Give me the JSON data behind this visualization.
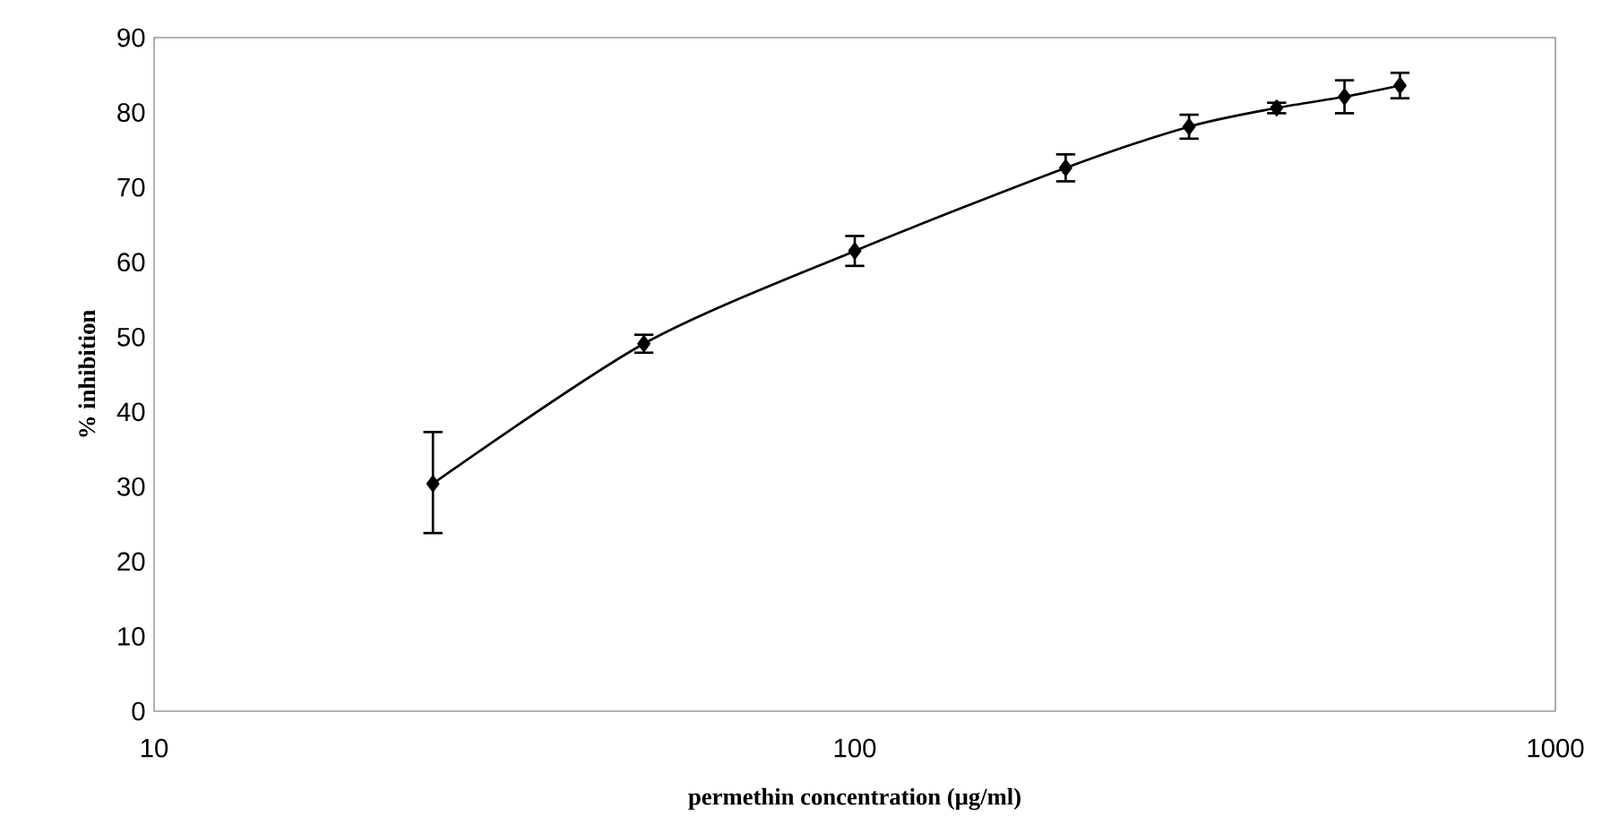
{
  "chart_data": {
    "type": "line",
    "xlabel": "permethin concentration (μg/ml)",
    "ylabel": "% inhibition",
    "x": [
      25,
      50,
      100,
      200,
      300,
      400,
      500,
      600
    ],
    "values": [
      30.4,
      49.1,
      61.5,
      72.6,
      78.1,
      80.6,
      82.1,
      83.6
    ],
    "errors": [
      [
        23.8,
        37.3
      ],
      1.2,
      2,
      1.8,
      1.6,
      0.7,
      2.2,
      1.7
    ],
    "color": "#000000",
    "marker": "diamond",
    "line_style": "solid",
    "log": "x",
    "xlim": [
      10,
      1000
    ],
    "xticks": [
      10,
      100,
      1000
    ],
    "ylim": [
      0,
      90
    ],
    "yticks": [
      0,
      10,
      20,
      30,
      40,
      50,
      60,
      70,
      80,
      90
    ]
  }
}
